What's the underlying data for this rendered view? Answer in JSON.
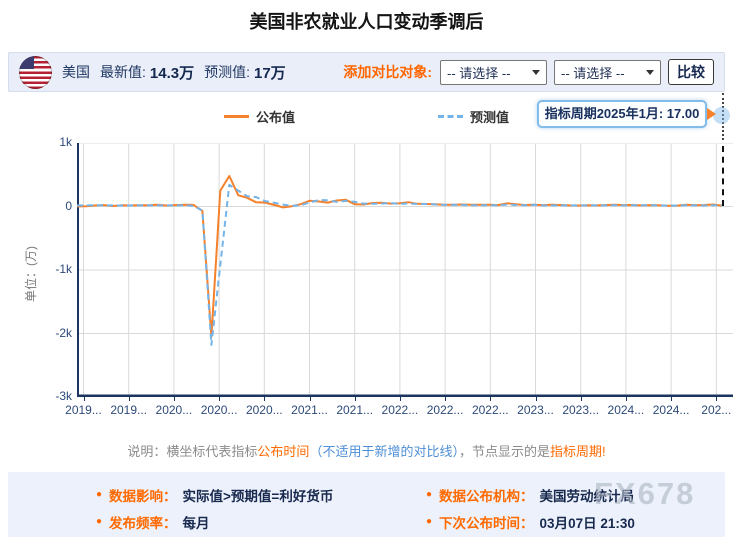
{
  "title": "美国非农就业人口变动季调后",
  "header": {
    "country": "美国",
    "latest_label": "最新值:",
    "latest_value": "14.3万",
    "forecast_label": "预测值:",
    "forecast_value": "17万",
    "compare_label": "添加对比对象:",
    "select1": "-- 请选择 --",
    "select2": "-- 请选择 --",
    "compare_button": "比较"
  },
  "legend": {
    "published": "公布值",
    "forecast": "预测值"
  },
  "tooltip": {
    "text": "指标周期2025年1月: 17.00"
  },
  "chart_data": {
    "type": "line",
    "unit_label": "单位：(万)",
    "ylim": [
      -3000,
      1000
    ],
    "y_ticks": [
      "1k",
      "0",
      "-1k",
      "-2k",
      "-3k"
    ],
    "y_values": [
      1000,
      0,
      -1000,
      -2000,
      -3000
    ],
    "x_ticks": [
      "2019...",
      "2019...",
      "2020...",
      "2020...",
      "2020...",
      "2021...",
      "2021...",
      "2022...",
      "2022...",
      "2022...",
      "2023...",
      "2023...",
      "2024...",
      "2024...",
      "202..."
    ],
    "grid": true,
    "legend_position": "top-center",
    "series": [
      {
        "name": "公布值",
        "color": "#f5812c",
        "style": "solid",
        "values": [
          2,
          3,
          15,
          22,
          8,
          19,
          17,
          21,
          19,
          26,
          15,
          22,
          27,
          25,
          -70,
          -2050,
          250,
          480,
          176,
          137,
          66,
          61,
          25,
          -14,
          5,
          38,
          92,
          78,
          61,
          94,
          105,
          36,
          31,
          55,
          59,
          45,
          50,
          68,
          43,
          39,
          37,
          29,
          26,
          32,
          29,
          28,
          26,
          22,
          51,
          34,
          24,
          29,
          22,
          28,
          24,
          18,
          15,
          20,
          18,
          22,
          26,
          22,
          24,
          18,
          22,
          21,
          11,
          14,
          26,
          22,
          23,
          31,
          14.3
        ]
      },
      {
        "name": "预测值",
        "color": "#74b4e8",
        "style": "dashed",
        "values": [
          18,
          18,
          20,
          18,
          17,
          16,
          16,
          17,
          18,
          18,
          17,
          16,
          20,
          10,
          -65,
          -2180,
          -920,
          340,
          250,
          160,
          148,
          85,
          60,
          30,
          10,
          20,
          65,
          100,
          98,
          72,
          88,
          73,
          45,
          43,
          45,
          55,
          40,
          49,
          40,
          39,
          31,
          25,
          27,
          25,
          20,
          20,
          20,
          20,
          30,
          24,
          20,
          26,
          18,
          17,
          17,
          18,
          17,
          18,
          18,
          17,
          20,
          18,
          20,
          20,
          20,
          16,
          15,
          15,
          20,
          18,
          16,
          20,
          17
        ]
      }
    ],
    "hover_point": {
      "series": "预测值",
      "label": "指标周期2025年1月",
      "value": 17.0
    }
  },
  "note": {
    "prefix": "说明：横坐标代表指标",
    "seg_publish_time": "公布时间",
    "seg_not_applicable": "（不适用于新增的对比线）",
    "seg_middle": "，节点显示的是",
    "seg_period": "指标周期!"
  },
  "info": {
    "impact_label": "数据影响：",
    "impact_value": "实际值>预期值=利好货币",
    "freq_label": "发布频率：",
    "freq_value": "每月",
    "agency_label": "数据公布机构：",
    "agency_value": "美国劳动统计局",
    "next_label": "下次公布时间：",
    "next_value": "03月07日 21:30"
  },
  "watermark": "FX678",
  "colors": {
    "published_line": "#f5812c",
    "forecast_line": "#74b4e8",
    "axis": "#1c3560",
    "accent_orange": "#ff6600",
    "accent_blue": "#4f8fd6",
    "header_bg": "#e9eef8",
    "panel_bg": "#edf1fb"
  }
}
